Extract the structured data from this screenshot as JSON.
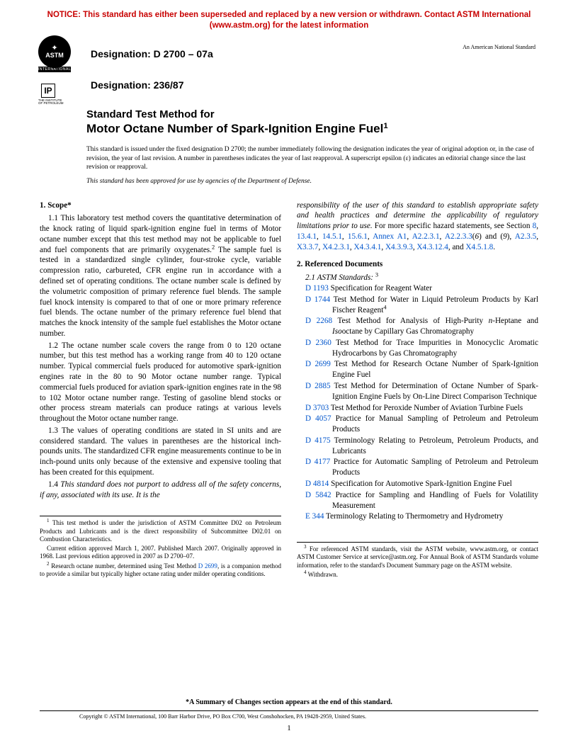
{
  "notice": "NOTICE: This standard has either been superseded and replaced by a new version or withdrawn. Contact ASTM International (www.astm.org) for the latest information",
  "designation1": "Designation: D 2700 – 07a",
  "designation2": "Designation: 236/87",
  "ans": "An American National Standard",
  "astm_text": "ASTM",
  "astm_sub": "INTERNATIONAL",
  "ip": "IP",
  "title_pre": "Standard Test Method for",
  "title_main": "Motor Octane Number of Spark-Ignition Engine Fuel",
  "title_sup": "1",
  "issue_note": "This standard is issued under the fixed designation D 2700; the number immediately following the designation indicates the year of original adoption or, in the case of revision, the year of last revision. A number in parentheses indicates the year of last reapproval. A superscript epsilon (ε) indicates an editorial change since the last revision or reapproval.",
  "dod_note": "This standard has been approved for use by agencies of the Department of Defense.",
  "scope_head": "1. Scope*",
  "p11": "1.1 This laboratory test method covers the quantitative determination of the knock rating of liquid spark-ignition engine fuel in terms of Motor octane number except that this test method may not be applicable to fuel and fuel components that are primarily oxygenates.",
  "p11b": " The sample fuel is tested in a standardized single cylinder, four-stroke cycle, variable compression ratio, carbureted, CFR engine run in accordance with a defined set of operating conditions. The octane number scale is defined by the volumetric composition of primary reference fuel blends. The sample fuel knock intensity is compared to that of one or more primary reference fuel blends. The octane number of the primary reference fuel blend that matches the knock intensity of the sample fuel establishes the Motor octane number.",
  "p12": "1.2 The octane number scale covers the range from 0 to 120 octane number, but this test method has a working range from 40 to 120 octane number. Typical commercial fuels produced for automotive spark-ignition engines rate in the 80 to 90 Motor octane number range. Typical commercial fuels produced for aviation spark-ignition engines rate in the 98 to 102 Motor octane number range. Testing of gasoline blend stocks or other process stream materials can produce ratings at various levels throughout the Motor octane number range.",
  "p13": "1.3 The values of operating conditions are stated in SI units and are considered standard. The values in parentheses are the historical inch-pounds units. The standardized CFR engine measurements continue to be in inch-pound units only because of the extensive and expensive tooling that has been created for this equipment.",
  "p14a": "1.4 ",
  "p14b": "This standard does not purport to address all of the safety concerns, if any, associated with its use. It is the",
  "col2_top_italic": "responsibility of the user of this standard to establish appropriate safety and health practices and determine the applicability of regulatory limitations prior to use.",
  "col2_top_rest": " For more specific hazard statements, see Section ",
  "hazard_links": [
    "8",
    "13.4.1",
    "14.5.1",
    "15.6.1",
    "Annex A1",
    "A2.2.3.1",
    "A2.2.3.3"
  ],
  "hazard_paren": "(6) and (9)",
  "hazard_links2": [
    "A2.3.5",
    "X3.3.7",
    "X4.2.3.1",
    "X4.3.4.1",
    "X4.3.9.3",
    "X4.3.12.4",
    "X4.5.1.8"
  ],
  "refdocs_head": "2. Referenced Documents",
  "astm_stds": "2.1 ASTM Standards:",
  "refs": [
    {
      "code": "D 1193",
      "txt": "Specification for Reagent Water"
    },
    {
      "code": "D 1744",
      "txt": "Test Method for Water in Liquid Petroleum Products by Karl Fischer Reagent",
      "sup": "4"
    },
    {
      "code": "D 2268",
      "txt": "Test Method for Analysis of High-Purity n-Heptane and Isooctane by Capillary Gas Chromatography",
      "italic_parts": true
    },
    {
      "code": "D 2360",
      "txt": "Test Method for Trace Impurities in Monocyclic Aromatic Hydrocarbons by Gas Chromatography"
    },
    {
      "code": "D 2699",
      "txt": "Test Method for Research Octane Number of Spark-Ignition Engine Fuel"
    },
    {
      "code": "D 2885",
      "txt": "Test Method for Determination of Octane Number of Spark-Ignition Engine Fuels by On-Line Direct Comparison Technique"
    },
    {
      "code": "D 3703",
      "txt": "Test Method for Peroxide Number of Aviation Turbine Fuels"
    },
    {
      "code": "D 4057",
      "txt": "Practice for Manual Sampling of Petroleum and Petroleum Products"
    },
    {
      "code": "D 4175",
      "txt": "Terminology Relating to Petroleum, Petroleum Products, and Lubricants"
    },
    {
      "code": "D 4177",
      "txt": "Practice for Automatic Sampling of Petroleum and Petroleum Products"
    },
    {
      "code": "D 4814",
      "txt": "Specification for Automotive Spark-Ignition Engine Fuel"
    },
    {
      "code": "D 5842",
      "txt": "Practice for Sampling and Handling of Fuels for Volatility Measurement"
    },
    {
      "code": "E 344",
      "txt": "Terminology Relating to Thermometry and Hydrometry"
    }
  ],
  "fn1a": " This test method is under the jurisdiction of ASTM Committee D02 on Petroleum Products and Lubricants and is the direct responsibility of Subcommittee D02.01 on Combustion Characteristics.",
  "fn1b": "Current edition approved March 1, 2007. Published March 2007. Originally approved in 1968. Last previous edition approved in 2007 as D 2700–07.",
  "fn2": " Research octane number, determined using Test Method ",
  "fn2_link": "D 2699",
  "fn2b": ", is a companion method to provide a similar but typically higher octane rating under milder operating conditions.",
  "fn3": " For referenced ASTM standards, visit the ASTM website, www.astm.org, or contact ASTM Customer Service at service@astm.org. For Annual Book of ASTM Standards volume information, refer to the standard's Document Summary page on the ASTM website.",
  "fn4": " Withdrawn.",
  "summary": "*A Summary of Changes section appears at the end of this standard.",
  "copyright": "Copyright © ASTM International, 100 Barr Harbor Drive, PO Box C700, West Conshohocken, PA 19428-2959, United States.",
  "page": "1"
}
